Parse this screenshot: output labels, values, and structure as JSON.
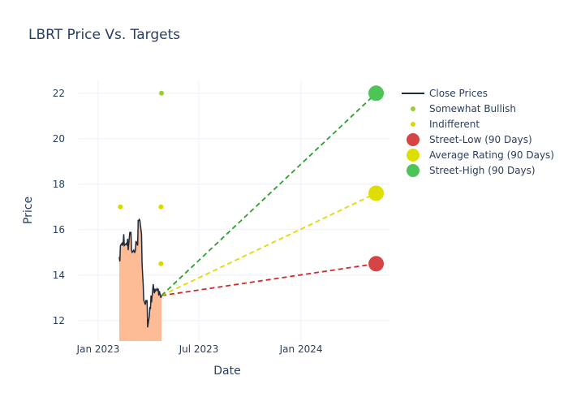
{
  "chart_data": {
    "type": "line",
    "title": "LBRT Price Vs. Targets",
    "xlabel": "Date",
    "ylabel": "Price",
    "xlim": [
      "2022-11-27",
      "2024-06-08"
    ],
    "ylim": [
      11.1,
      22.6
    ],
    "x_ticks": [
      {
        "date": "2023-01-01",
        "label": "Jan 2023"
      },
      {
        "date": "2023-07-01",
        "label": "Jul 2023"
      },
      {
        "date": "2024-01-01",
        "label": "Jan 2024"
      }
    ],
    "y_ticks": [
      12,
      14,
      16,
      18,
      20,
      22
    ],
    "grid": true,
    "legend_position": "right",
    "series": [
      {
        "name": "Close Prices",
        "kind": "line-area",
        "color": "#1f2a3a",
        "fill_color": "#fdbb96",
        "points": [
          [
            "2023-02-08",
            14.8
          ],
          [
            "2023-02-09",
            14.6
          ],
          [
            "2023-02-10",
            15.3
          ],
          [
            "2023-02-13",
            15.4
          ],
          [
            "2023-02-14",
            15.3
          ],
          [
            "2023-02-15",
            15.4
          ],
          [
            "2023-02-16",
            15.8
          ],
          [
            "2023-02-17",
            15.3
          ],
          [
            "2023-02-21",
            15.4
          ],
          [
            "2023-02-22",
            15.3
          ],
          [
            "2023-02-23",
            15.6
          ],
          [
            "2023-02-24",
            15.1
          ],
          [
            "2023-02-27",
            15.9
          ],
          [
            "2023-02-28",
            15.8
          ],
          [
            "2023-03-01",
            15.9
          ],
          [
            "2023-03-02",
            15.1
          ],
          [
            "2023-03-03",
            15.0
          ],
          [
            "2023-03-06",
            15.1
          ],
          [
            "2023-03-07",
            15.0
          ],
          [
            "2023-03-08",
            15.0
          ],
          [
            "2023-03-09",
            15.1
          ],
          [
            "2023-03-10",
            15.5
          ],
          [
            "2023-03-13",
            15.3
          ],
          [
            "2023-03-14",
            16.4
          ],
          [
            "2023-03-15",
            16.4
          ],
          [
            "2023-03-16",
            16.45
          ],
          [
            "2023-03-17",
            16.4
          ],
          [
            "2023-03-20",
            15.8
          ],
          [
            "2023-03-21",
            14.5
          ],
          [
            "2023-03-22",
            14.0
          ],
          [
            "2023-03-23",
            13.6
          ],
          [
            "2023-03-24",
            12.9
          ],
          [
            "2023-03-27",
            12.7
          ],
          [
            "2023-03-28",
            12.9
          ],
          [
            "2023-03-29",
            12.8
          ],
          [
            "2023-03-30",
            12.9
          ],
          [
            "2023-03-31",
            11.7
          ],
          [
            "2023-04-03",
            12.2
          ],
          [
            "2023-04-04",
            12.6
          ],
          [
            "2023-04-05",
            12.5
          ],
          [
            "2023-04-06",
            13.1
          ],
          [
            "2023-04-07",
            12.8
          ],
          [
            "2023-04-10",
            13.6
          ],
          [
            "2023-04-11",
            13.4
          ],
          [
            "2023-04-12",
            13.2
          ],
          [
            "2023-04-13",
            13.4
          ],
          [
            "2023-04-14",
            13.3
          ],
          [
            "2023-04-17",
            13.4
          ],
          [
            "2023-04-18",
            13.3
          ],
          [
            "2023-04-19",
            13.4
          ],
          [
            "2023-04-20",
            13.1
          ],
          [
            "2023-04-21",
            13.3
          ],
          [
            "2023-04-24",
            13.0
          ],
          [
            "2023-04-25",
            13.1
          ]
        ]
      },
      {
        "name": "Somewhat Bullish",
        "kind": "markers",
        "color": "#9acd32",
        "points": [
          [
            "2023-04-25",
            22.0
          ]
        ]
      },
      {
        "name": "Indifferent",
        "kind": "markers",
        "color": "#d9d900",
        "points": [
          [
            "2023-02-10",
            17.0
          ],
          [
            "2023-04-24",
            17.0
          ],
          [
            "2023-04-24",
            14.5
          ]
        ]
      },
      {
        "name": "Street-Low (90 Days)",
        "kind": "target",
        "color": "#d62728",
        "marker_color": "#d64545",
        "start": [
          "2023-04-25",
          13.1
        ],
        "end": [
          "2024-05-15",
          14.5
        ]
      },
      {
        "name": "Average Rating (90 Days)",
        "kind": "target",
        "color": "#dcdc00",
        "marker_color": "#dede00",
        "start": [
          "2023-04-25",
          13.1
        ],
        "end": [
          "2024-05-15",
          17.6
        ]
      },
      {
        "name": "Street-High (90 Days)",
        "kind": "target",
        "color": "#2ca02c",
        "marker_color": "#4cc456",
        "start": [
          "2023-04-25",
          13.1
        ],
        "end": [
          "2024-05-15",
          22.0
        ]
      }
    ]
  }
}
